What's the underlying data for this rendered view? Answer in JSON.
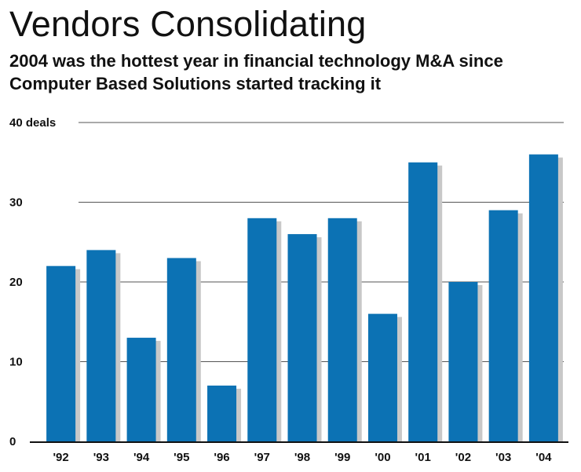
{
  "colors": {
    "bar": "#0c72b4",
    "bar_shadow": "#c8c8c8",
    "grid": "#555555",
    "baseline": "#111111",
    "text": "#111111"
  },
  "chart_data": {
    "type": "bar",
    "title": "Vendors Consolidating",
    "subtitle": "2004 was the hottest year in financial technology M&A since Computer Based Solutions started tracking it",
    "xlabel": "",
    "ylabel": "",
    "categories": [
      "'92",
      "'93",
      "'94",
      "'95",
      "'96",
      "'97",
      "'98",
      "'99",
      "'00",
      "'01",
      "'02",
      "'03",
      "'04"
    ],
    "values": [
      22,
      24,
      13,
      23,
      7,
      28,
      26,
      28,
      16,
      35,
      20,
      29,
      36
    ],
    "ylim": [
      0,
      40
    ],
    "yticks": [
      0,
      10,
      20,
      30,
      40
    ],
    "ytick_labels": [
      "0",
      "10",
      "20",
      "30",
      "40 deals"
    ],
    "grid": true,
    "legend": "none"
  }
}
